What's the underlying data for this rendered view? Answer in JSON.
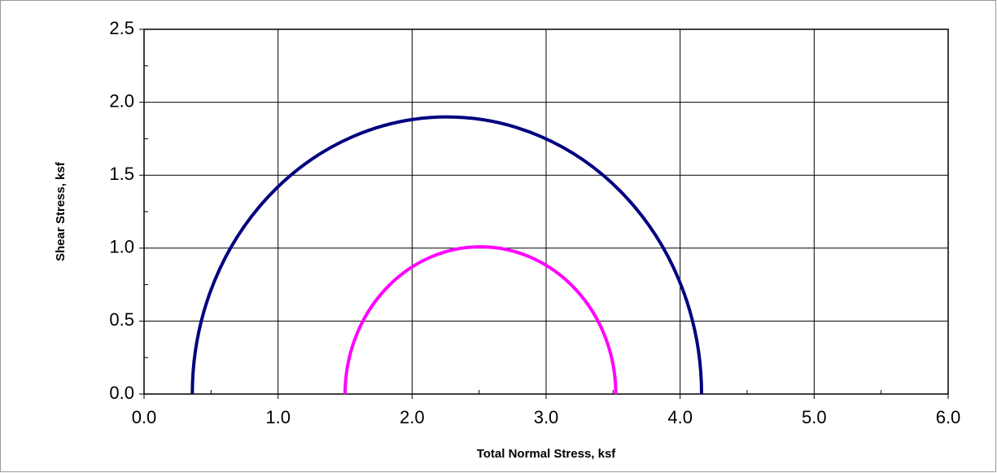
{
  "chart_data": {
    "type": "circle",
    "xlabel": "Total Normal Stress, ksf",
    "ylabel": "Shear Stress, ksf",
    "series": [
      {
        "color": "#000080",
        "center": 2.26,
        "radius": 1.9
      },
      {
        "color": "#ff00ff",
        "center": 2.51,
        "radius": 1.01
      }
    ],
    "xlim": [
      0,
      6
    ],
    "ylim": [
      0,
      2.5
    ],
    "xticks": [
      {
        "value": 0,
        "label": "0.0"
      },
      {
        "value": 1,
        "label": "1.0"
      },
      {
        "value": 2,
        "label": "2.0"
      },
      {
        "value": 3,
        "label": "3.0"
      },
      {
        "value": 4,
        "label": "4.0"
      },
      {
        "value": 5,
        "label": "5.0"
      },
      {
        "value": 6,
        "label": "6.0"
      }
    ],
    "yticks": [
      {
        "value": 0,
        "label": "0.0"
      },
      0.5,
      {
        "value": 1,
        "label": "1.0"
      },
      1.5,
      {
        "value": 2,
        "label": "2.0"
      },
      2.5
    ],
    "xminorticks": [
      0.5,
      1.5,
      2.5,
      3.5,
      4.5,
      5.5
    ],
    "yminorticks": [
      0.25,
      0.75,
      1.25,
      1.75,
      2.25
    ],
    "grid": true
  }
}
